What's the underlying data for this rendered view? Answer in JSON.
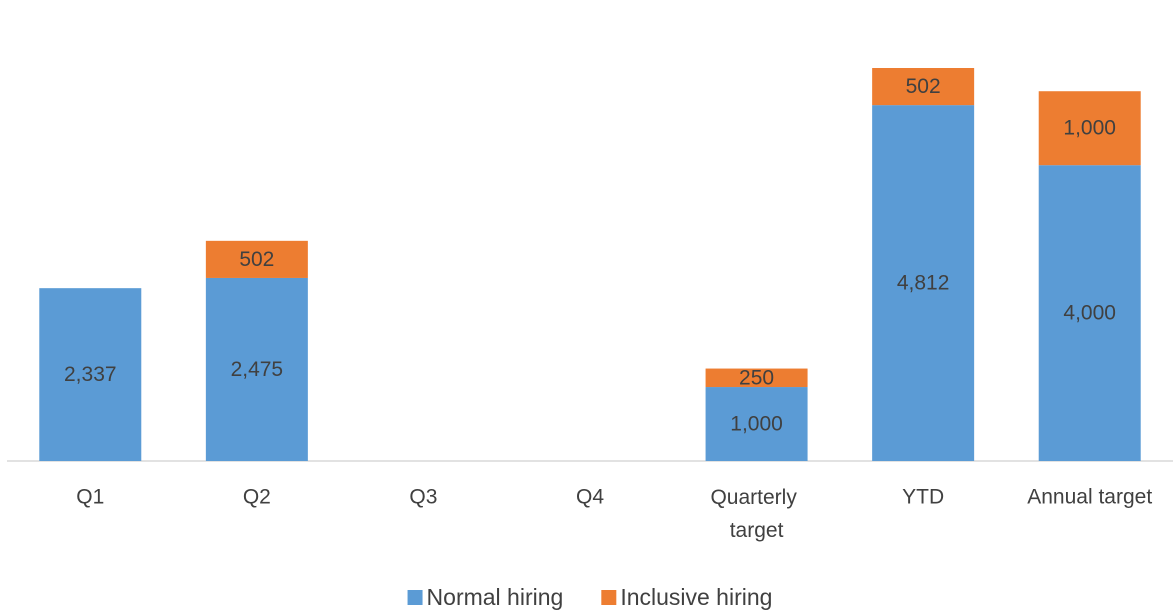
{
  "chart_data": {
    "type": "bar",
    "stacked": true,
    "categories": [
      "Q1",
      "Q2",
      "Q3",
      "Q4",
      "Quarterly target",
      "YTD",
      "Annual target"
    ],
    "series": [
      {
        "name": "Normal hiring",
        "color": "#5b9bd5",
        "values": [
          2337,
          2475,
          null,
          null,
          1000,
          4812,
          4000
        ],
        "value_labels": [
          "2,337",
          "2,475",
          null,
          null,
          "1,000",
          "4,812",
          "4,000"
        ]
      },
      {
        "name": "Inclusive hiring",
        "color": "#ed7d31",
        "values": [
          null,
          502,
          null,
          null,
          250,
          502,
          1000
        ],
        "value_labels": [
          null,
          "502",
          null,
          null,
          "250",
          "502",
          "1,000"
        ]
      }
    ],
    "legend": "bottom"
  }
}
